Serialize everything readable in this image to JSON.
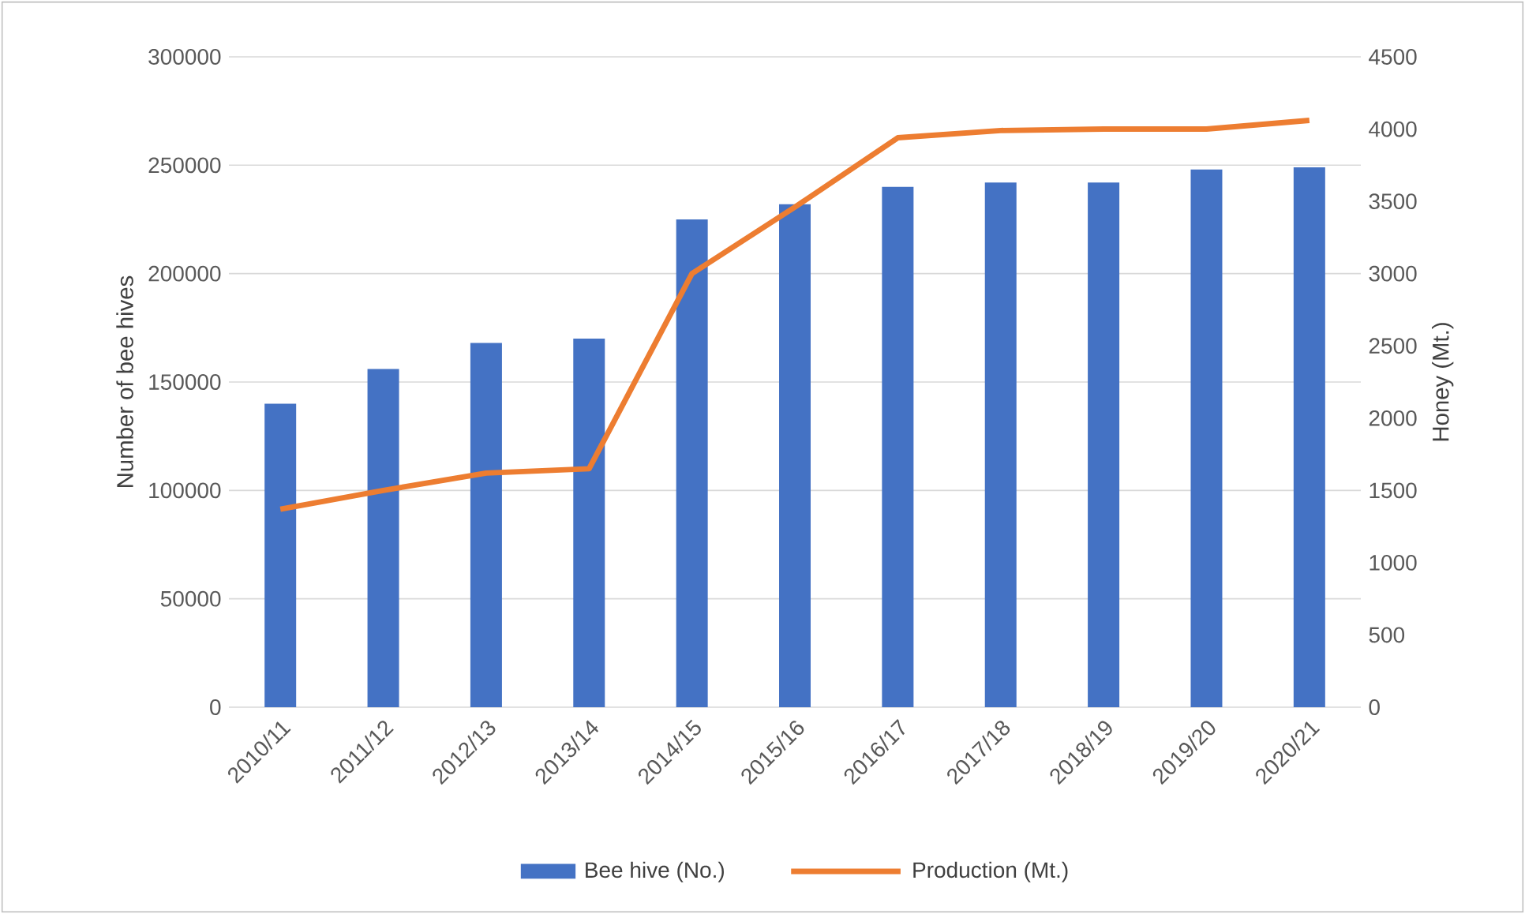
{
  "chart_data": {
    "type": "bar",
    "categories": [
      "2010/11",
      "2011/12",
      "2012/13",
      "2013/14",
      "2014/15",
      "2015/16",
      "2016/17",
      "2017/18",
      "2018/19",
      "2019/20",
      "2020/21"
    ],
    "ylabel": "Number of bee hives",
    "y2label": "Honey (Mt.)",
    "ylim": [
      0,
      300000
    ],
    "yticks": [
      0,
      50000,
      100000,
      150000,
      200000,
      250000,
      300000
    ],
    "y2lim": [
      0,
      4500
    ],
    "y2ticks": [
      0,
      500,
      1000,
      1500,
      2000,
      2500,
      3000,
      3500,
      4000,
      4500
    ],
    "grid": "y",
    "legend": "bottom",
    "series": [
      {
        "name": "Bee hive (No.)",
        "color": "#4472c4",
        "values": [
          140000,
          156000,
          168000,
          170000,
          225000,
          232000,
          240000,
          242000,
          242000,
          248000,
          249000
        ]
      },
      {
        "name": "Production (Mt.)",
        "type": "line",
        "axis": "y2",
        "color": "#ed7d31",
        "values": [
          1370,
          1500,
          1620,
          1650,
          3000,
          3460,
          3940,
          3990,
          4000,
          4000,
          4060
        ]
      }
    ]
  }
}
